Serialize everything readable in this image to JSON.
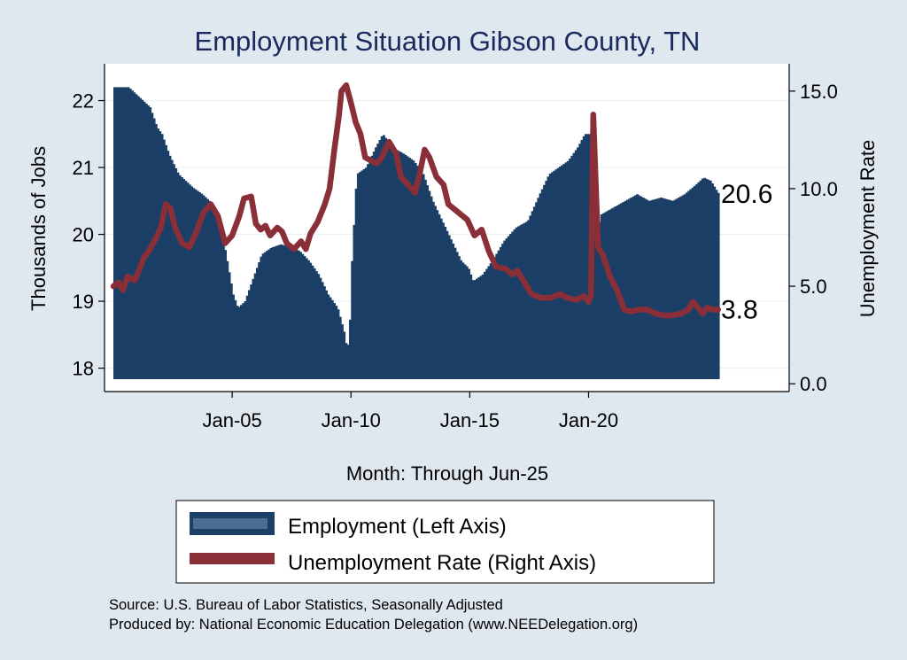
{
  "chart_data": {
    "type": "bar+line",
    "title": "Employment Situation Gibson  County, TN",
    "xlabel": "Month: Through Jun-25",
    "ylabel_left": "Thousands of Jobs",
    "ylabel_right": "Unemployment Rate",
    "x_range": [
      2000.0,
      2025.5
    ],
    "ylim_left": [
      17.65,
      22.55
    ],
    "ylim_right": [
      -0.4,
      16.4
    ],
    "left_ticks": [
      {
        "value": 18,
        "label": "18"
      },
      {
        "value": 19,
        "label": "19"
      },
      {
        "value": 20,
        "label": "20"
      },
      {
        "value": 21,
        "label": "21"
      },
      {
        "value": 22,
        "label": "22"
      }
    ],
    "right_ticks": [
      {
        "value": 0,
        "label": "0.0"
      },
      {
        "value": 5,
        "label": "5.0"
      },
      {
        "value": 10,
        "label": "10.0"
      },
      {
        "value": 15,
        "label": "15.0"
      }
    ],
    "x_ticks": [
      {
        "value": 2005,
        "label": "Jan-05"
      },
      {
        "value": 2010,
        "label": "Jan-10"
      },
      {
        "value": 2015,
        "label": "Jan-15"
      },
      {
        "value": 2020,
        "label": "Jan-20"
      }
    ],
    "series": [
      {
        "name": "Employment (Left Axis)",
        "type": "bar",
        "color": "#1b3f66",
        "points": [
          [
            2000.0,
            22.2
          ],
          [
            2000.6,
            22.2
          ],
          [
            2000.9,
            22.1
          ],
          [
            2001.2,
            22.0
          ],
          [
            2001.5,
            21.9
          ],
          [
            2001.8,
            21.6
          ],
          [
            2002.0,
            21.5
          ],
          [
            2002.3,
            21.2
          ],
          [
            2002.7,
            20.9
          ],
          [
            2003.0,
            20.8
          ],
          [
            2003.3,
            20.7
          ],
          [
            2003.7,
            20.6
          ],
          [
            2004.0,
            20.5
          ],
          [
            2004.3,
            20.3
          ],
          [
            2004.6,
            19.9
          ],
          [
            2004.8,
            19.5
          ],
          [
            2005.0,
            19.1
          ],
          [
            2005.2,
            18.9
          ],
          [
            2005.5,
            19.0
          ],
          [
            2005.8,
            19.3
          ],
          [
            2006.2,
            19.7
          ],
          [
            2006.6,
            19.8
          ],
          [
            2007.0,
            19.85
          ],
          [
            2007.5,
            19.8
          ],
          [
            2007.8,
            19.75
          ],
          [
            2008.2,
            19.6
          ],
          [
            2008.6,
            19.4
          ],
          [
            2009.0,
            19.1
          ],
          [
            2009.4,
            18.9
          ],
          [
            2009.7,
            18.5
          ],
          [
            2009.8,
            18.25
          ],
          [
            2009.9,
            18.55
          ],
          [
            2010.0,
            19.6
          ],
          [
            2010.2,
            20.9
          ],
          [
            2010.6,
            21.0
          ],
          [
            2011.0,
            21.3
          ],
          [
            2011.3,
            21.5
          ],
          [
            2011.7,
            21.3
          ],
          [
            2012.2,
            21.2
          ],
          [
            2012.6,
            21.1
          ],
          [
            2013.0,
            20.9
          ],
          [
            2013.4,
            20.5
          ],
          [
            2013.8,
            20.2
          ],
          [
            2014.2,
            19.9
          ],
          [
            2014.6,
            19.6
          ],
          [
            2014.9,
            19.5
          ],
          [
            2015.1,
            19.3
          ],
          [
            2015.5,
            19.4
          ],
          [
            2015.9,
            19.6
          ],
          [
            2016.4,
            19.9
          ],
          [
            2016.9,
            20.1
          ],
          [
            2017.4,
            20.2
          ],
          [
            2017.9,
            20.6
          ],
          [
            2018.3,
            20.9
          ],
          [
            2018.7,
            21.0
          ],
          [
            2019.1,
            21.1
          ],
          [
            2019.5,
            21.3
          ],
          [
            2019.8,
            21.5
          ],
          [
            2020.1,
            21.5
          ],
          [
            2020.3,
            20.0
          ],
          [
            2020.5,
            20.3
          ],
          [
            2021.0,
            20.4
          ],
          [
            2021.5,
            20.5
          ],
          [
            2022.0,
            20.6
          ],
          [
            2022.5,
            20.5
          ],
          [
            2023.0,
            20.55
          ],
          [
            2023.5,
            20.5
          ],
          [
            2024.0,
            20.6
          ],
          [
            2024.5,
            20.75
          ],
          [
            2024.8,
            20.85
          ],
          [
            2025.1,
            20.8
          ],
          [
            2025.45,
            20.6
          ]
        ]
      },
      {
        "name": "Unemployment Rate (Right Axis)",
        "type": "line",
        "color": "#8a2e38",
        "points": [
          [
            2000.0,
            5.0
          ],
          [
            2000.2,
            5.2
          ],
          [
            2000.4,
            4.8
          ],
          [
            2000.6,
            5.5
          ],
          [
            2000.9,
            5.3
          ],
          [
            2001.1,
            5.9
          ],
          [
            2001.3,
            6.5
          ],
          [
            2001.5,
            6.8
          ],
          [
            2001.8,
            7.5
          ],
          [
            2002.0,
            8.0
          ],
          [
            2002.2,
            9.2
          ],
          [
            2002.4,
            9.0
          ],
          [
            2002.6,
            8.0
          ],
          [
            2002.9,
            7.2
          ],
          [
            2003.2,
            7.0
          ],
          [
            2003.5,
            7.8
          ],
          [
            2003.8,
            8.8
          ],
          [
            2004.1,
            9.2
          ],
          [
            2004.4,
            8.6
          ],
          [
            2004.7,
            7.2
          ],
          [
            2005.0,
            7.6
          ],
          [
            2005.3,
            8.6
          ],
          [
            2005.5,
            9.5
          ],
          [
            2005.8,
            9.6
          ],
          [
            2006.0,
            8.2
          ],
          [
            2006.2,
            7.9
          ],
          [
            2006.4,
            8.1
          ],
          [
            2006.6,
            7.6
          ],
          [
            2006.9,
            8.0
          ],
          [
            2007.1,
            7.8
          ],
          [
            2007.3,
            7.2
          ],
          [
            2007.6,
            6.9
          ],
          [
            2007.9,
            7.3
          ],
          [
            2008.1,
            6.9
          ],
          [
            2008.3,
            7.7
          ],
          [
            2008.6,
            8.3
          ],
          [
            2008.9,
            9.2
          ],
          [
            2009.1,
            10.0
          ],
          [
            2009.3,
            12.0
          ],
          [
            2009.5,
            13.8
          ],
          [
            2009.6,
            15.0
          ],
          [
            2009.8,
            15.3
          ],
          [
            2010.0,
            14.4
          ],
          [
            2010.2,
            13.4
          ],
          [
            2010.4,
            12.8
          ],
          [
            2010.6,
            11.6
          ],
          [
            2010.9,
            11.4
          ],
          [
            2011.1,
            11.3
          ],
          [
            2011.3,
            11.6
          ],
          [
            2011.6,
            12.4
          ],
          [
            2011.9,
            11.8
          ],
          [
            2012.1,
            10.6
          ],
          [
            2012.4,
            10.2
          ],
          [
            2012.7,
            9.8
          ],
          [
            2012.9,
            10.8
          ],
          [
            2013.1,
            12.0
          ],
          [
            2013.3,
            11.6
          ],
          [
            2013.6,
            10.6
          ],
          [
            2013.9,
            10.2
          ],
          [
            2014.1,
            9.2
          ],
          [
            2014.4,
            8.9
          ],
          [
            2014.7,
            8.6
          ],
          [
            2014.9,
            8.4
          ],
          [
            2015.2,
            7.6
          ],
          [
            2015.5,
            7.9
          ],
          [
            2015.8,
            6.8
          ],
          [
            2016.1,
            6.0
          ],
          [
            2016.5,
            5.9
          ],
          [
            2016.8,
            5.6
          ],
          [
            2017.0,
            5.8
          ],
          [
            2017.3,
            5.2
          ],
          [
            2017.6,
            4.6
          ],
          [
            2018.0,
            4.4
          ],
          [
            2018.4,
            4.4
          ],
          [
            2018.8,
            4.6
          ],
          [
            2019.1,
            4.4
          ],
          [
            2019.5,
            4.3
          ],
          [
            2019.8,
            4.5
          ],
          [
            2020.0,
            4.2
          ],
          [
            2020.1,
            4.5
          ],
          [
            2020.2,
            13.8
          ],
          [
            2020.4,
            7.0
          ],
          [
            2020.6,
            6.6
          ],
          [
            2020.9,
            5.5
          ],
          [
            2021.2,
            4.8
          ],
          [
            2021.5,
            3.8
          ],
          [
            2021.8,
            3.7
          ],
          [
            2022.1,
            3.8
          ],
          [
            2022.5,
            3.8
          ],
          [
            2022.8,
            3.6
          ],
          [
            2023.2,
            3.5
          ],
          [
            2023.5,
            3.5
          ],
          [
            2023.9,
            3.6
          ],
          [
            2024.2,
            3.8
          ],
          [
            2024.4,
            4.2
          ],
          [
            2024.6,
            3.9
          ],
          [
            2024.8,
            3.6
          ],
          [
            2025.0,
            3.9
          ],
          [
            2025.2,
            3.8
          ],
          [
            2025.45,
            3.8
          ]
        ]
      }
    ],
    "end_labels": {
      "employment": "20.6",
      "unemployment": "3.8"
    },
    "legend_position": "bottom",
    "grid": "horizontal"
  },
  "notes": {
    "source": "Source: U.S. Bureau of Labor Statistics, Seasonally Adjusted",
    "produced": "Produced by: National Economic Education Delegation (www.NEEDelegation.org)"
  }
}
